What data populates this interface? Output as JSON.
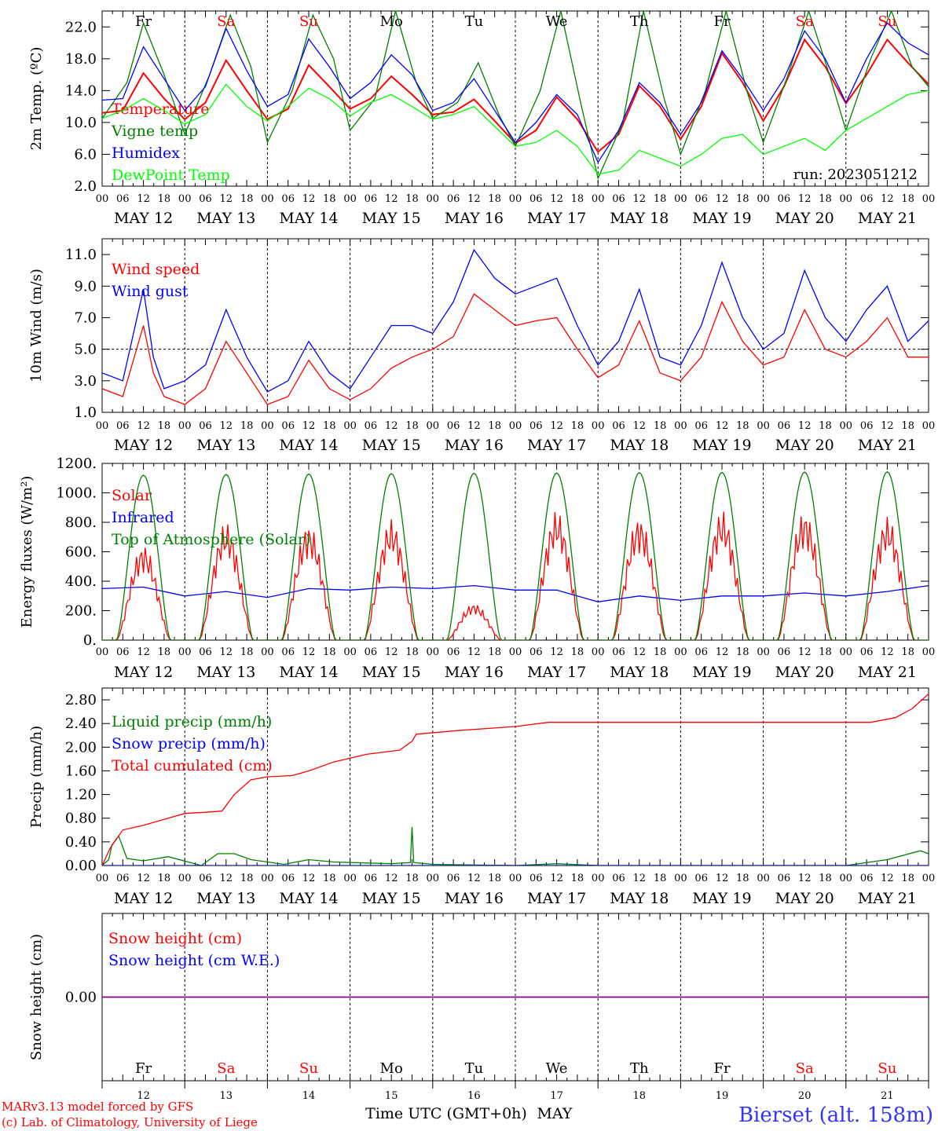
{
  "colors": {
    "red": "#ff0000",
    "green": "#008000",
    "blue": "#0000ff",
    "light_green": "#00ff00",
    "purple": "#800080",
    "black": "#000000",
    "station": "#3333ff"
  },
  "x_axis": {
    "hour_labels": [
      "00",
      "06",
      "12",
      "18"
    ],
    "end_hour_label": "00",
    "date_labels": [
      "MAY 12",
      "MAY 13",
      "MAY 14",
      "MAY 15",
      "MAY 16",
      "MAY 17",
      "MAY 18",
      "MAY 19",
      "MAY 20",
      "MAY 21"
    ],
    "weekdays": [
      {
        "label": "Fr",
        "weekend": false
      },
      {
        "label": "Sa",
        "weekend": true
      },
      {
        "label": "Su",
        "weekend": true
      },
      {
        "label": "Mo",
        "weekend": false
      },
      {
        "label": "Tu",
        "weekend": false
      },
      {
        "label": "We",
        "weekend": false
      },
      {
        "label": "Th",
        "weekend": false
      },
      {
        "label": "Fr",
        "weekend": false
      },
      {
        "label": "Sa",
        "weekend": true
      },
      {
        "label": "Su",
        "weekend": true
      }
    ],
    "day_numbers": [
      "12",
      "13",
      "14",
      "15",
      "16",
      "17",
      "18",
      "19",
      "20",
      "21"
    ],
    "title": "Time UTC (GMT+0h)",
    "month": "MAY"
  },
  "footer": {
    "credit_line1": "MARv3.13 model forced by GFS",
    "credit_line2": "(c) Lab. of Climatology, University of Liege",
    "station": "Bierset (alt. 158m)"
  },
  "chart_data": [
    {
      "type": "line",
      "ylabel": "2m Temp. (ºC)",
      "yticks": [
        "2.0",
        "6.0",
        "10.0",
        "14.0",
        "18.0",
        "22.0"
      ],
      "ylim": [
        2,
        24
      ],
      "run_label": "run: 2023051212",
      "series": [
        {
          "name": "Temperature",
          "color": "red",
          "x_days": [
            0,
            0.25,
            0.5,
            0.75,
            1,
            1.25,
            1.5,
            1.75,
            2,
            2.25,
            2.5,
            2.75,
            3,
            3.25,
            3.5,
            3.75,
            4,
            4.25,
            4.5,
            4.75,
            5,
            5.25,
            5.5,
            5.75,
            6,
            6.25,
            6.5,
            6.75,
            7,
            7.25,
            7.5,
            7.75,
            8,
            8.25,
            8.5,
            8.75,
            9,
            9.25,
            9.5,
            9.75,
            10
          ],
          "values": [
            11.2,
            11.5,
            16.2,
            13.0,
            10.4,
            12.5,
            17.8,
            14.0,
            10.4,
            11.7,
            17.2,
            14.5,
            11.7,
            13.0,
            15.8,
            13.5,
            11.0,
            11.3,
            12.9,
            10.2,
            7.4,
            9.0,
            13.2,
            10.4,
            6.3,
            8.5,
            14.6,
            12.0,
            7.9,
            12.0,
            18.7,
            15.0,
            10.2,
            14.5,
            20.4,
            17.0,
            12.4,
            16.0,
            20.4,
            17.5,
            14.8
          ]
        },
        {
          "name": "Vigne temp",
          "color": "green",
          "x_days": [
            0,
            0.3,
            0.5,
            0.75,
            1,
            1.3,
            1.55,
            1.8,
            2,
            2.3,
            2.55,
            2.8,
            3,
            3.3,
            3.55,
            3.8,
            4,
            4.3,
            4.55,
            4.8,
            5,
            5.3,
            5.55,
            5.8,
            6,
            6.3,
            6.55,
            6.8,
            7,
            7.3,
            7.55,
            7.8,
            8,
            8.3,
            8.55,
            8.8,
            9,
            9.3,
            9.55,
            9.8,
            10
          ],
          "values": [
            10.5,
            15.0,
            22.5,
            16.0,
            8.5,
            16.0,
            23.5,
            17.0,
            7.5,
            14.0,
            23.5,
            18.0,
            9.0,
            13.0,
            24.0,
            15.0,
            10.5,
            12.5,
            17.5,
            11.0,
            7.0,
            14.0,
            24.0,
            12.0,
            3.0,
            10.0,
            24.0,
            13.0,
            6.0,
            14.0,
            24.0,
            14.0,
            7.5,
            16.0,
            24.0,
            16.0,
            9.0,
            18.0,
            24.0,
            17.0,
            14.5
          ]
        },
        {
          "name": "Humidex",
          "color": "blue",
          "x_days": [
            0,
            0.25,
            0.5,
            0.75,
            1,
            1.25,
            1.5,
            1.75,
            2,
            2.25,
            2.5,
            2.75,
            3,
            3.25,
            3.5,
            3.75,
            4,
            4.25,
            4.5,
            4.75,
            5,
            5.25,
            5.5,
            5.75,
            6,
            6.25,
            6.5,
            6.75,
            7,
            7.25,
            7.5,
            7.75,
            8,
            8.25,
            8.5,
            8.75,
            9,
            9.25,
            9.5,
            9.75,
            10
          ],
          "values": [
            12.8,
            13.0,
            19.5,
            15.5,
            11.5,
            14.5,
            21.8,
            16.5,
            12.0,
            13.5,
            20.5,
            17.0,
            13.0,
            15.0,
            18.5,
            16.0,
            11.5,
            12.5,
            15.5,
            11.5,
            7.5,
            10.0,
            13.5,
            11.0,
            5.0,
            9.0,
            15.0,
            12.5,
            8.5,
            12.5,
            19.0,
            15.5,
            11.5,
            15.5,
            21.5,
            18.0,
            12.5,
            18.0,
            22.5,
            20.0,
            18.5
          ]
        },
        {
          "name": "DewPoint Temp",
          "color": "light_green",
          "x_days": [
            0,
            0.25,
            0.5,
            0.75,
            1,
            1.25,
            1.5,
            1.75,
            2,
            2.25,
            2.5,
            2.75,
            3,
            3.25,
            3.5,
            3.75,
            4,
            4.25,
            4.5,
            4.75,
            5,
            5.25,
            5.5,
            5.75,
            6,
            6.25,
            6.5,
            6.75,
            7,
            7.25,
            7.5,
            7.75,
            8,
            8.25,
            8.5,
            8.75,
            9,
            9.25,
            9.5,
            9.75,
            10
          ],
          "values": [
            10.5,
            11.5,
            13.0,
            11.5,
            9.8,
            11.0,
            14.8,
            12.0,
            10.2,
            12.0,
            14.3,
            13.0,
            10.8,
            12.5,
            13.5,
            12.0,
            10.4,
            11.0,
            12.0,
            9.5,
            7.0,
            7.5,
            9.0,
            7.0,
            3.5,
            4.0,
            6.5,
            5.5,
            4.5,
            6.0,
            8.0,
            8.5,
            6.0,
            7.0,
            8.0,
            6.5,
            9.0,
            10.5,
            12.0,
            13.5,
            14.0
          ]
        }
      ]
    },
    {
      "type": "line",
      "ylabel": "10m Wind (m/s)",
      "yticks": [
        "1.0",
        "3.0",
        "5.0",
        "7.0",
        "9.0",
        "11.0"
      ],
      "ylim": [
        1,
        12
      ],
      "reference_line": 5,
      "series": [
        {
          "name": "Wind speed",
          "color": "red",
          "x_days": [
            0,
            0.25,
            0.5,
            0.62,
            0.75,
            1,
            1.25,
            1.5,
            1.75,
            2,
            2.25,
            2.5,
            2.75,
            3,
            3.25,
            3.5,
            3.75,
            4,
            4.25,
            4.5,
            4.75,
            5,
            5.25,
            5.5,
            5.75,
            6,
            6.25,
            6.5,
            6.75,
            7,
            7.25,
            7.5,
            7.75,
            8,
            8.25,
            8.5,
            8.75,
            9,
            9.25,
            9.5,
            9.75,
            10
          ],
          "values": [
            2.5,
            2.0,
            6.5,
            3.5,
            2.0,
            1.5,
            2.5,
            5.5,
            3.5,
            1.5,
            2.0,
            4.3,
            2.5,
            1.8,
            2.5,
            3.8,
            4.5,
            5.0,
            5.8,
            8.5,
            7.5,
            6.5,
            6.8,
            7.0,
            5.0,
            3.2,
            4.0,
            6.8,
            3.5,
            3.0,
            4.5,
            8.0,
            5.5,
            4.0,
            4.5,
            7.5,
            5.0,
            4.5,
            5.5,
            7.0,
            4.5,
            4.5
          ]
        },
        {
          "name": "Wind gust",
          "color": "blue",
          "x_days": [
            0,
            0.25,
            0.5,
            0.62,
            0.75,
            1,
            1.25,
            1.5,
            1.75,
            2,
            2.25,
            2.5,
            2.75,
            3,
            3.25,
            3.5,
            3.75,
            4,
            4.25,
            4.5,
            4.75,
            5,
            5.25,
            5.5,
            5.75,
            6,
            6.25,
            6.5,
            6.75,
            7,
            7.25,
            7.5,
            7.75,
            8,
            8.25,
            8.5,
            8.75,
            9,
            9.25,
            9.5,
            9.75,
            10
          ],
          "values": [
            3.5,
            3.0,
            8.8,
            4.5,
            2.5,
            3.0,
            4.0,
            7.5,
            4.5,
            2.3,
            3.0,
            5.5,
            3.5,
            2.5,
            4.5,
            6.5,
            6.5,
            6.0,
            8.0,
            11.3,
            9.5,
            8.5,
            9.0,
            9.5,
            6.5,
            4.0,
            5.5,
            8.8,
            4.5,
            4.0,
            6.5,
            10.5,
            7.0,
            5.0,
            6.0,
            10.0,
            7.0,
            5.5,
            7.5,
            9.0,
            5.5,
            6.8
          ]
        }
      ]
    },
    {
      "type": "line",
      "ylabel": "Energy fluxes (W/m²)",
      "yticks": [
        "0.",
        "200.",
        "400.",
        "600.",
        "800.",
        "1000.",
        "1200."
      ],
      "ylim": [
        0,
        1200
      ],
      "series": [
        {
          "name": "Solar",
          "color": "red",
          "daily_peak": [
            650,
            800,
            790,
            820,
            250,
            880,
            840,
            880,
            880,
            840
          ]
        },
        {
          "name": "Infrared",
          "color": "blue",
          "x_days": [
            0,
            0.5,
            1,
            1.5,
            2,
            2.5,
            3,
            3.5,
            4,
            4.5,
            5,
            5.5,
            6,
            6.5,
            7,
            7.5,
            8,
            8.5,
            9,
            9.5,
            10
          ],
          "values": [
            350,
            360,
            300,
            330,
            290,
            350,
            340,
            360,
            350,
            370,
            340,
            340,
            260,
            300,
            270,
            300,
            300,
            320,
            300,
            330,
            370
          ]
        },
        {
          "name": "Top of Atmosphere (Solar)",
          "color": "green",
          "daily_peak": [
            1120,
            1125,
            1128,
            1130,
            1133,
            1135,
            1137,
            1139,
            1141,
            1143
          ]
        }
      ]
    },
    {
      "type": "line",
      "ylabel": "Precip (mm/h)",
      "yticks": [
        "0.00",
        "0.40",
        "0.80",
        "1.20",
        "1.60",
        "2.00",
        "2.40",
        "2.80"
      ],
      "ylim": [
        0,
        3.0
      ],
      "series": [
        {
          "name": "Liquid precip (mm/h)",
          "color": "green",
          "x_days": [
            0,
            0.08,
            0.12,
            0.2,
            0.3,
            0.5,
            0.8,
            1.2,
            1.4,
            1.6,
            1.8,
            2.2,
            2.5,
            2.8,
            3.5,
            3.73,
            3.75,
            3.77,
            4.0,
            5.0,
            5.5,
            6.0,
            9.0,
            9.5,
            9.9,
            10.0
          ],
          "values": [
            0.0,
            0.1,
            0.35,
            0.5,
            0.12,
            0.08,
            0.15,
            0.0,
            0.2,
            0.2,
            0.1,
            0.02,
            0.1,
            0.06,
            0.03,
            0.05,
            0.65,
            0.05,
            0.02,
            0.0,
            0.03,
            0.0,
            0.0,
            0.1,
            0.25,
            0.2
          ]
        },
        {
          "name": "Snow precip (mm/h)",
          "color": "blue",
          "x_days": [
            0,
            10
          ],
          "values": [
            0,
            0
          ]
        },
        {
          "name": "Total cumulated (cm)",
          "color": "red",
          "x_days": [
            0,
            0.1,
            0.25,
            0.5,
            0.75,
            1.0,
            1.25,
            1.45,
            1.6,
            1.8,
            2.0,
            2.3,
            2.5,
            2.8,
            3.2,
            3.6,
            3.75,
            3.8,
            4.3,
            4.8,
            5.0,
            5.4,
            8.0,
            9.3,
            9.6,
            9.8,
            10.0
          ],
          "values": [
            0.0,
            0.3,
            0.6,
            0.68,
            0.78,
            0.88,
            0.9,
            0.92,
            1.2,
            1.45,
            1.5,
            1.52,
            1.6,
            1.75,
            1.88,
            1.95,
            2.1,
            2.22,
            2.28,
            2.33,
            2.35,
            2.42,
            2.42,
            2.42,
            2.5,
            2.65,
            2.9
          ]
        }
      ]
    },
    {
      "type": "line",
      "ylabel": "Snow height (cm)",
      "yticks": [
        "0.00"
      ],
      "ylim": [
        -1,
        1
      ],
      "series": [
        {
          "name": "Snow height (cm)",
          "color": "red",
          "x_days": [
            0,
            10
          ],
          "values": [
            0,
            0
          ]
        },
        {
          "name": "Snow height (cm W.E.)",
          "color": "blue",
          "x_days": [
            0,
            10
          ],
          "values": [
            0,
            0
          ]
        }
      ]
    }
  ]
}
